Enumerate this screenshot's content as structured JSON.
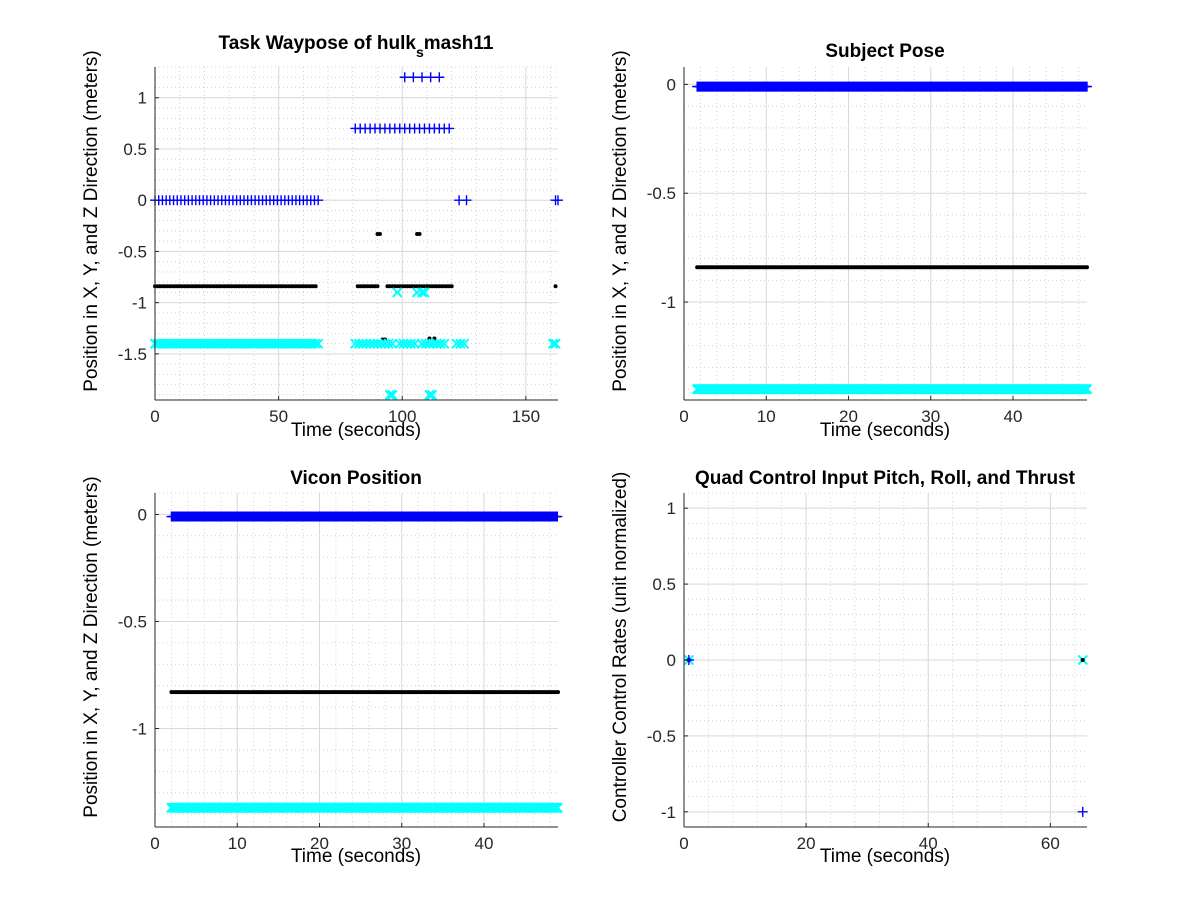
{
  "figure": {
    "background": "#ffffff"
  },
  "colors": {
    "blue": "#0000ff",
    "black": "#000000",
    "cyan": "#00ffff",
    "grid_major": "#d9d9d9",
    "grid_minor": "#c8c8c8"
  },
  "chart_data": [
    {
      "type": "scatter",
      "title": "Task Waypose of hulk",
      "title_subscript": "s",
      "title_suffix": "mash11",
      "xlabel": "Time (seconds)",
      "ylabel": "Position in X, Y, and Z Direction (meters)",
      "xlim": [
        0,
        163
      ],
      "ylim": [
        -1.95,
        1.3
      ],
      "xticks": [
        0,
        50,
        100,
        150
      ],
      "xtick_labels": [
        "0",
        "50",
        "100",
        "150"
      ],
      "yticks": [
        1,
        0.5,
        0,
        -0.5,
        -1,
        -1.5
      ],
      "ytick_labels": [
        "1",
        "0.5",
        "0",
        "-0.5",
        "-1",
        "-1.5"
      ],
      "grid": true,
      "minor_grid": true,
      "series": [
        {
          "color": "blue",
          "marker": "+",
          "segments": [
            {
              "x": [
                0,
                66
              ],
              "y": 0,
              "step": 1.5
            },
            {
              "x": [
                81,
                119
              ],
              "y": 0.7,
              "step": 2
            },
            {
              "x": [
                101,
                115
              ],
              "y": 1.2,
              "step": 3.5
            },
            {
              "x": [
                123,
                126
              ],
              "y": 0,
              "step": 3
            },
            {
              "x": [
                162,
                163
              ],
              "y": 0,
              "step": 1
            }
          ]
        },
        {
          "color": "black",
          "marker": ".",
          "segments": [
            {
              "x": [
                0,
                65
              ],
              "y": -0.84,
              "step": 1
            },
            {
              "x": [
                82,
                90
              ],
              "y": -0.84,
              "step": 1
            },
            {
              "x": [
                94,
                120
              ],
              "y": -0.84,
              "step": 1
            },
            {
              "x": [
                162,
                162
              ],
              "y": -0.84,
              "step": 1
            }
          ],
          "points": [
            [
              90,
              -0.33
            ],
            [
              91,
              -0.33
            ],
            [
              106,
              -0.33
            ],
            [
              107,
              -0.33
            ],
            [
              92,
              -1.36
            ],
            [
              93,
              -1.36
            ],
            [
              111,
              -1.35
            ],
            [
              113,
              -1.35
            ]
          ]
        },
        {
          "color": "cyan",
          "marker": "x",
          "segments": [
            {
              "x": [
                0,
                66
              ],
              "y": -1.4,
              "step": 1.2
            },
            {
              "x": [
                81,
                96
              ],
              "y": -1.4,
              "step": 1.5
            },
            {
              "x": [
                99,
                105
              ],
              "y": -1.4,
              "step": 1.5
            },
            {
              "x": [
                108,
                118
              ],
              "y": -1.4,
              "step": 1.5
            },
            {
              "x": [
                122,
                125
              ],
              "y": -1.4,
              "step": 1.5
            },
            {
              "x": [
                161,
                162
              ],
              "y": -1.4,
              "step": 1
            }
          ],
          "points": [
            [
              98,
              -0.9
            ],
            [
              106,
              -0.9
            ],
            [
              108,
              -0.9
            ],
            [
              109,
              -0.9
            ],
            [
              95,
              -1.9
            ],
            [
              96,
              -1.9
            ],
            [
              111,
              -1.9
            ],
            [
              112,
              -1.9
            ]
          ]
        }
      ]
    },
    {
      "type": "scatter",
      "title": "Subject Pose",
      "xlabel": "Time (seconds)",
      "ylabel": "Position in X, Y, and Z Direction (meters)",
      "xlim": [
        0,
        49
      ],
      "ylim": [
        -1.45,
        0.08
      ],
      "xticks": [
        0,
        10,
        20,
        30,
        40
      ],
      "xtick_labels": [
        "0",
        "10",
        "20",
        "30",
        "40"
      ],
      "yticks": [
        0,
        -0.5,
        -1
      ],
      "ytick_labels": [
        "0",
        "-0.5",
        "-1"
      ],
      "grid": true,
      "minor_grid": true,
      "series": [
        {
          "color": "blue",
          "marker": "+",
          "segments": [
            {
              "x": [
                1.6,
                49
              ],
              "y": -0.01,
              "step": 0.12
            }
          ]
        },
        {
          "color": "black",
          "marker": ".",
          "segments": [
            {
              "x": [
                1.6,
                49
              ],
              "y": -0.84,
              "step": 0.2
            }
          ]
        },
        {
          "color": "cyan",
          "marker": "x",
          "segments": [
            {
              "x": [
                1.6,
                49
              ],
              "y": -1.4,
              "step": 0.15
            }
          ]
        }
      ]
    },
    {
      "type": "scatter",
      "title": "Vicon Position",
      "xlabel": "Time (seconds)",
      "ylabel": "Position in X, Y, and Z Direction (meters)",
      "xlim": [
        0,
        49
      ],
      "ylim": [
        -1.46,
        0.1
      ],
      "xticks": [
        0,
        10,
        20,
        30,
        40
      ],
      "xtick_labels": [
        "0",
        "10",
        "20",
        "30",
        "40"
      ],
      "yticks": [
        0,
        -0.5,
        -1
      ],
      "ytick_labels": [
        "0",
        "-0.5",
        "-1"
      ],
      "grid": true,
      "minor_grid": true,
      "series": [
        {
          "color": "blue",
          "marker": "+",
          "segments": [
            {
              "x": [
                2,
                49
              ],
              "y": -0.01,
              "step": 0.12
            }
          ]
        },
        {
          "color": "black",
          "marker": ".",
          "segments": [
            {
              "x": [
                2,
                49
              ],
              "y": -0.83,
              "step": 0.2
            }
          ]
        },
        {
          "color": "cyan",
          "marker": "x",
          "segments": [
            {
              "x": [
                2,
                49
              ],
              "y": -1.37,
              "step": 0.15
            }
          ]
        }
      ]
    },
    {
      "type": "scatter",
      "title": "Quad Control Input Pitch, Roll, and Thrust",
      "xlabel": "Time (seconds)",
      "ylabel": "Controller Control Rates (unit normalized)",
      "xlim": [
        0,
        66
      ],
      "ylim": [
        -1.1,
        1.1
      ],
      "xticks": [
        0,
        20,
        40,
        60
      ],
      "xtick_labels": [
        "0",
        "20",
        "40",
        "60"
      ],
      "yticks": [
        1,
        0.5,
        0,
        -0.5,
        -1
      ],
      "ytick_labels": [
        "1",
        "0.5",
        "0",
        "-0.5",
        "-1"
      ],
      "grid": true,
      "minor_grid": true,
      "series": [
        {
          "color": "cyan",
          "marker": "x",
          "points": [
            [
              0.8,
              0
            ],
            [
              65.3,
              0
            ]
          ]
        },
        {
          "color": "black",
          "marker": ".",
          "points": [
            [
              0.8,
              0
            ],
            [
              65.3,
              0
            ]
          ]
        },
        {
          "color": "blue",
          "marker": "+",
          "points": [
            [
              0.8,
              0
            ],
            [
              65.3,
              -1
            ]
          ]
        }
      ]
    }
  ]
}
